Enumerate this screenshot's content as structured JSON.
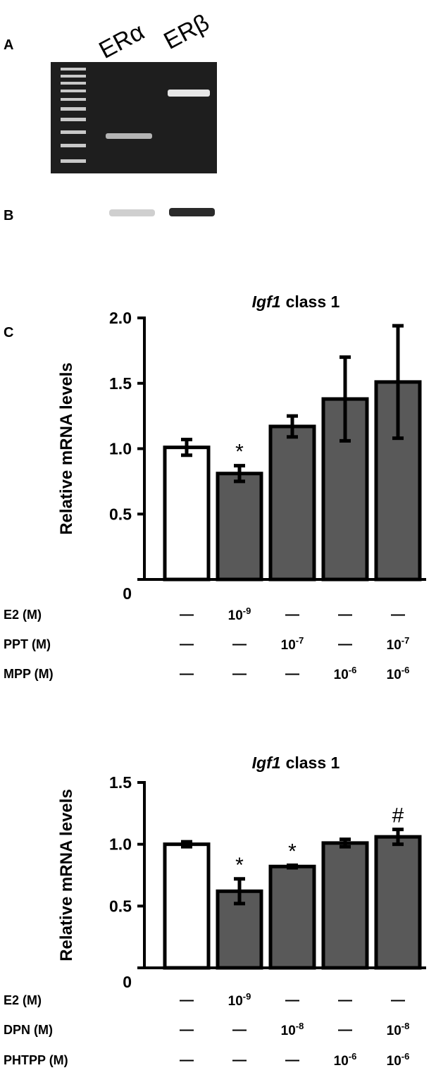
{
  "panels": {
    "a": "A",
    "b": "B",
    "c": "C"
  },
  "gel": {
    "lanes": [
      "ERα",
      "ERβ"
    ]
  },
  "chart_data": [
    {
      "type": "bar",
      "title_gene": "Igf1",
      "title_rest": "class 1",
      "y_label": "Relative mRNA levels",
      "values": [
        1.01,
        0.81,
        1.17,
        1.38,
        1.51
      ],
      "errors": [
        0.06,
        0.06,
        0.08,
        0.32,
        0.43
      ],
      "bar_colors": [
        "#ffffff",
        "#595959",
        "#595959",
        "#595959",
        "#595959"
      ],
      "annotations": [
        null,
        "*",
        null,
        null,
        null
      ],
      "ylim": [
        0,
        2
      ],
      "yticks": [
        0,
        0.5,
        {
          "value": 1,
          "label": "1.0"
        },
        1.5,
        {
          "value": 2,
          "label": "2.0"
        }
      ],
      "treatments": [
        {
          "name": "E2 (M)",
          "cells": [
            "—",
            {
              "base": "10",
              "exponent": "-9"
            },
            "—",
            "—",
            "—"
          ]
        },
        {
          "name": "PPT (M)",
          "cells": [
            "—",
            "—",
            {
              "base": "10",
              "exponent": "-7"
            },
            "—",
            {
              "base": "10",
              "exponent": "-7"
            }
          ]
        },
        {
          "name": "MPP (M)",
          "cells": [
            "—",
            "—",
            "—",
            {
              "base": "10",
              "exponent": "-6"
            },
            {
              "base": "10",
              "exponent": "-6"
            }
          ]
        }
      ]
    },
    {
      "type": "bar",
      "title_gene": "Igf1",
      "title_rest": "class 1",
      "y_label": "Relative mRNA levels",
      "values": [
        1.0,
        0.62,
        0.82,
        1.01,
        1.06
      ],
      "errors": [
        0.02,
        0.1,
        0.01,
        0.03,
        0.06
      ],
      "bar_colors": [
        "#ffffff",
        "#595959",
        "#595959",
        "#595959",
        "#595959"
      ],
      "annotations": [
        null,
        "*",
        "*",
        null,
        "#"
      ],
      "ylim": [
        0,
        1.5
      ],
      "yticks": [
        0,
        0.5,
        {
          "value": 1,
          "label": "1.0"
        },
        1.5
      ],
      "treatments": [
        {
          "name": "E2 (M)",
          "cells": [
            "—",
            {
              "base": "10",
              "exponent": "-9"
            },
            "—",
            "—",
            "—"
          ]
        },
        {
          "name": "DPN (M)",
          "cells": [
            "—",
            "—",
            {
              "base": "10",
              "exponent": "-8"
            },
            "—",
            {
              "base": "10",
              "exponent": "-8"
            }
          ]
        },
        {
          "name": "PHTPP (M)",
          "cells": [
            "—",
            "—",
            "—",
            {
              "base": "10",
              "exponent": "-6"
            },
            {
              "base": "10",
              "exponent": "-6"
            }
          ]
        }
      ]
    }
  ]
}
